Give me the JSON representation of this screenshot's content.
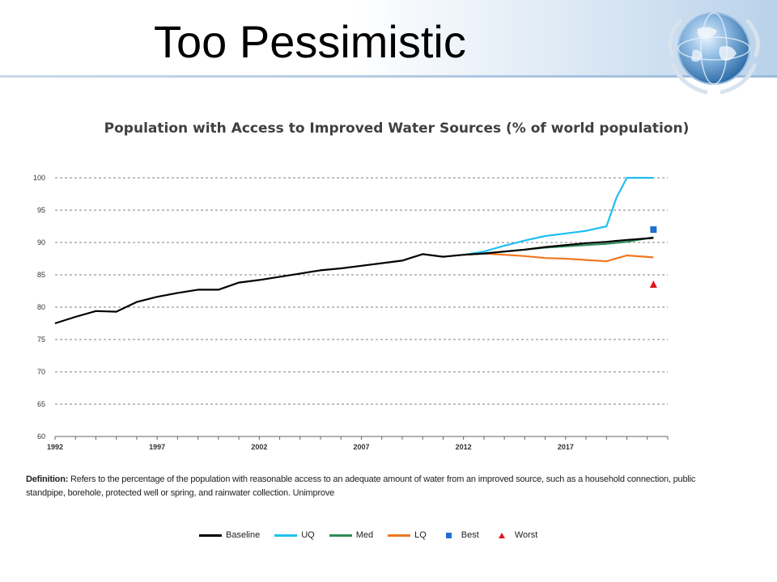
{
  "slide": {
    "title": "Too Pessimistic"
  },
  "definition": {
    "label": "Definition:",
    "text": " Refers to the percentage of the population with reasonable access to an adequate amount of water from an improved source, such as a household connection, public standpipe, borehole, protected well or spring, and rainwater collection. Unimprove"
  },
  "colors": {
    "baseline": "#000000",
    "uq": "#1fbfef",
    "med": "#2e8b57",
    "lq": "#f07820",
    "best": "#1f6fd0",
    "worst": "#e3141c",
    "grid": "#808080"
  },
  "chart_data": {
    "type": "line",
    "title": "Population with Access to Improved Water Sources  (% of world population)",
    "xlabel": "",
    "ylabel": "",
    "xlim": [
      1992,
      2022
    ],
    "ylim": [
      60,
      100
    ],
    "x_ticks": [
      "1992",
      "1997",
      "2002",
      "2007",
      "2012",
      "2017"
    ],
    "y_ticks": [
      "100",
      "95",
      "90",
      "85",
      "80",
      "75",
      "70",
      "65",
      "60"
    ],
    "grid": "horizontal dashed",
    "legend_position": "bottom",
    "series": [
      {
        "name": "Baseline",
        "color_key": "baseline",
        "x": [
          1992,
          1993,
          1994,
          1995,
          1996,
          1997,
          1998,
          1999,
          2000,
          2001,
          2002,
          2003,
          2004,
          2005,
          2006,
          2007,
          2008,
          2009,
          2010,
          2011,
          2012,
          2013,
          2014,
          2015,
          2016,
          2017,
          2018,
          2019,
          2020,
          2021.3
        ],
        "y": [
          77.5,
          78.5,
          79.4,
          79.3,
          80.8,
          81.6,
          82.2,
          82.7,
          82.7,
          83.8,
          84.2,
          84.7,
          85.2,
          85.7,
          86.0,
          86.4,
          86.8,
          87.2,
          88.2,
          87.8,
          88.1,
          88.3,
          88.6,
          88.9,
          89.3,
          89.6,
          89.9,
          90.1,
          90.4,
          90.7
        ]
      },
      {
        "name": "UQ",
        "color_key": "uq",
        "x": [
          2012,
          2013,
          2014,
          2015,
          2016,
          2017,
          2018,
          2019,
          2019.5,
          2020,
          2021.3
        ],
        "y": [
          88.1,
          88.6,
          89.5,
          90.3,
          91.0,
          91.4,
          91.8,
          92.5,
          97.0,
          100,
          100
        ]
      },
      {
        "name": "Med",
        "color_key": "med",
        "x": [
          2012,
          2013,
          2014,
          2015,
          2016,
          2017,
          2018,
          2019,
          2020,
          2021.3
        ],
        "y": [
          88.1,
          88.3,
          88.6,
          88.9,
          89.2,
          89.4,
          89.6,
          89.8,
          90.1,
          90.8
        ]
      },
      {
        "name": "LQ",
        "color_key": "lq",
        "x": [
          2012,
          2013,
          2014,
          2015,
          2016,
          2017,
          2018,
          2019,
          2020,
          2021.3
        ],
        "y": [
          88.1,
          88.3,
          88.1,
          87.9,
          87.6,
          87.5,
          87.3,
          87.1,
          88.0,
          87.7
        ]
      }
    ],
    "points": [
      {
        "name": "Best",
        "color_key": "best",
        "marker": "square",
        "x": 2021.3,
        "y": 92.0
      },
      {
        "name": "Worst",
        "color_key": "worst",
        "marker": "triangle",
        "x": 2021.3,
        "y": 83.5
      }
    ]
  },
  "legend": {
    "items": [
      {
        "label": "Baseline",
        "color_key": "baseline",
        "kind": "line"
      },
      {
        "label": "UQ",
        "color_key": "uq",
        "kind": "line"
      },
      {
        "label": "Med",
        "color_key": "med",
        "kind": "line"
      },
      {
        "label": "LQ",
        "color_key": "lq",
        "kind": "line"
      },
      {
        "label": "Best",
        "color_key": "best",
        "kind": "square"
      },
      {
        "label": "Worst",
        "color_key": "worst",
        "kind": "triangle"
      }
    ]
  }
}
